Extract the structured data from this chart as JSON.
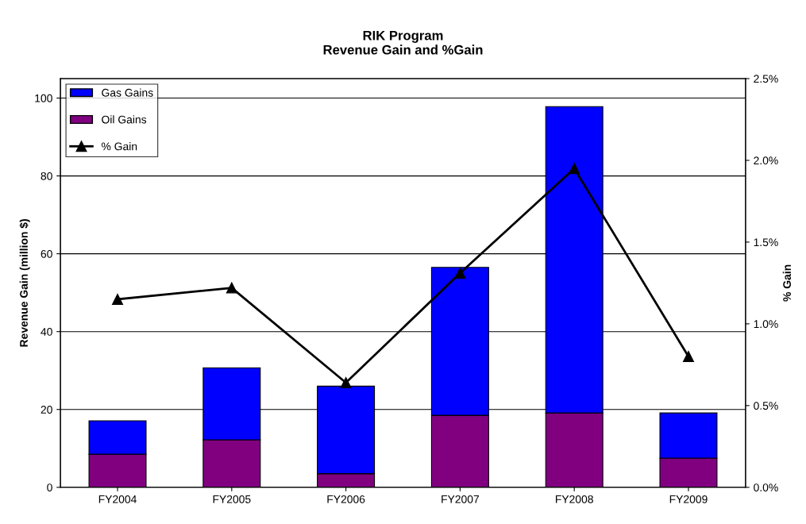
{
  "chart_data": {
    "type": "bar",
    "title": "RIK Program\nRevenue Gain and %Gain",
    "ylabel": "Revenue Gain (million $)",
    "y2label": "% Gain",
    "categories": [
      "FY2004",
      "FY2005",
      "FY2006",
      "FY2007",
      "FY2008",
      "FY2009"
    ],
    "stacked": true,
    "series": [
      {
        "name": "Oil Gains",
        "color": "#800080",
        "values": [
          8.5,
          12.2,
          3.5,
          18.5,
          19.1,
          7.5
        ]
      },
      {
        "name": "Gas Gains",
        "color": "#0000ff",
        "values": [
          8.6,
          18.5,
          22.5,
          38.0,
          78.7,
          11.6
        ]
      },
      {
        "name": "% Gain",
        "type": "line",
        "axis": "y2",
        "color": "#000000",
        "marker": "triangle",
        "line_style": "solid",
        "values": [
          1.15,
          1.22,
          0.64,
          1.31,
          1.95,
          0.8
        ]
      }
    ],
    "ylim": [
      0,
      105
    ],
    "yticks": [
      0,
      20,
      40,
      60,
      80,
      100
    ],
    "y2lim": [
      0,
      2.5
    ],
    "y2ticks": [
      {
        "value": 0,
        "label": "0.0%"
      },
      {
        "value": 0.5,
        "label": "0.5%"
      },
      {
        "value": 1.0,
        "label": "1.0%"
      },
      {
        "value": 1.5,
        "label": "1.5%"
      },
      {
        "value": 2.0,
        "label": "2.0%"
      },
      {
        "value": 2.5,
        "label": "2.5%"
      }
    ],
    "grid": "y",
    "legend": "top left"
  }
}
